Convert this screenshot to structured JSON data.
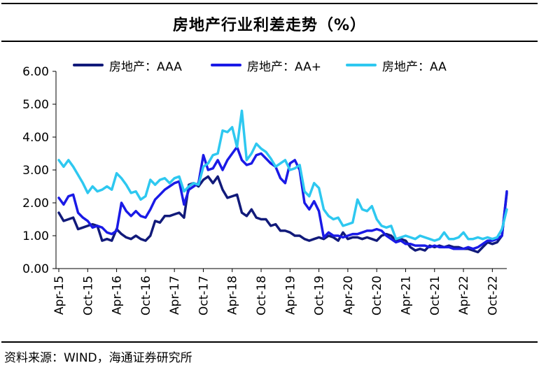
{
  "title": "房地产行业利差走势（%）",
  "source": "资料来源：WIND，海通证券研究所",
  "chart_data": {
    "type": "line",
    "title": "房地产行业利差走势（%）",
    "ylim": [
      0,
      6
    ],
    "yticks": [
      "0.00",
      "1.00",
      "2.00",
      "3.00",
      "4.00",
      "5.00",
      "6.00"
    ],
    "xticks": [
      "Apr-15",
      "Oct-15",
      "Apr-16",
      "Oct-16",
      "Apr-17",
      "Oct-17",
      "Apr-18",
      "Oct-18",
      "Apr-19",
      "Oct-19",
      "Apr-20",
      "Oct-20",
      "Apr-21",
      "Oct-21",
      "Apr-22",
      "Oct-22"
    ],
    "xlim": [
      "2015-04",
      "2023-01"
    ],
    "legend_position": "top",
    "grid": false,
    "series": [
      {
        "name": "房地产：AAA",
        "color": "#111a7a",
        "points": [
          [
            "2015-04",
            1.7
          ],
          [
            "2015-05",
            1.45
          ],
          [
            "2015-06",
            1.5
          ],
          [
            "2015-07",
            1.55
          ],
          [
            "2015-08",
            1.2
          ],
          [
            "2015-09",
            1.25
          ],
          [
            "2015-10",
            1.3
          ],
          [
            "2015-11",
            1.35
          ],
          [
            "2015-12",
            1.3
          ],
          [
            "2016-01",
            0.85
          ],
          [
            "2016-02",
            0.9
          ],
          [
            "2016-03",
            0.85
          ],
          [
            "2016-04",
            1.2
          ],
          [
            "2016-05",
            1.05
          ],
          [
            "2016-06",
            0.95
          ],
          [
            "2016-07",
            0.9
          ],
          [
            "2016-08",
            1.0
          ],
          [
            "2016-09",
            0.9
          ],
          [
            "2016-10",
            0.85
          ],
          [
            "2016-11",
            1.0
          ],
          [
            "2016-12",
            1.45
          ],
          [
            "2017-01",
            1.4
          ],
          [
            "2017-02",
            1.6
          ],
          [
            "2017-03",
            1.6
          ],
          [
            "2017-04",
            1.65
          ],
          [
            "2017-05",
            1.7
          ],
          [
            "2017-06",
            1.55
          ],
          [
            "2017-07",
            2.55
          ],
          [
            "2017-08",
            2.6
          ],
          [
            "2017-09",
            2.5
          ],
          [
            "2017-10",
            2.7
          ],
          [
            "2017-11",
            2.8
          ],
          [
            "2017-12",
            2.6
          ],
          [
            "2018-01",
            2.8
          ],
          [
            "2018-02",
            2.4
          ],
          [
            "2018-03",
            2.15
          ],
          [
            "2018-04",
            2.2
          ],
          [
            "2018-05",
            2.25
          ],
          [
            "2018-06",
            1.7
          ],
          [
            "2018-07",
            1.6
          ],
          [
            "2018-08",
            1.8
          ],
          [
            "2018-09",
            1.55
          ],
          [
            "2018-10",
            1.5
          ],
          [
            "2018-11",
            1.5
          ],
          [
            "2018-12",
            1.3
          ],
          [
            "2019-01",
            1.35
          ],
          [
            "2019-02",
            1.15
          ],
          [
            "2019-03",
            1.15
          ],
          [
            "2019-04",
            1.1
          ],
          [
            "2019-05",
            1.0
          ],
          [
            "2019-06",
            1.0
          ],
          [
            "2019-07",
            0.9
          ],
          [
            "2019-08",
            0.85
          ],
          [
            "2019-09",
            0.9
          ],
          [
            "2019-10",
            0.95
          ],
          [
            "2019-11",
            0.9
          ],
          [
            "2019-12",
            1.0
          ],
          [
            "2020-01",
            0.95
          ],
          [
            "2020-02",
            0.85
          ],
          [
            "2020-03",
            1.1
          ],
          [
            "2020-04",
            0.9
          ],
          [
            "2020-05",
            0.95
          ],
          [
            "2020-06",
            0.95
          ],
          [
            "2020-07",
            0.9
          ],
          [
            "2020-08",
            0.95
          ],
          [
            "2020-09",
            0.9
          ],
          [
            "2020-10",
            0.85
          ],
          [
            "2020-11",
            1.0
          ],
          [
            "2020-12",
            1.05
          ],
          [
            "2021-01",
            1.0
          ],
          [
            "2021-02",
            0.85
          ],
          [
            "2021-03",
            0.9
          ],
          [
            "2021-04",
            0.85
          ],
          [
            "2021-05",
            0.65
          ],
          [
            "2021-06",
            0.55
          ],
          [
            "2021-07",
            0.6
          ],
          [
            "2021-08",
            0.55
          ],
          [
            "2021-09",
            0.7
          ],
          [
            "2021-10",
            0.65
          ],
          [
            "2021-11",
            0.7
          ],
          [
            "2021-12",
            0.65
          ],
          [
            "2022-01",
            0.7
          ],
          [
            "2022-02",
            0.65
          ],
          [
            "2022-03",
            0.65
          ],
          [
            "2022-04",
            0.6
          ],
          [
            "2022-05",
            0.6
          ],
          [
            "2022-06",
            0.55
          ],
          [
            "2022-07",
            0.5
          ],
          [
            "2022-08",
            0.65
          ],
          [
            "2022-09",
            0.8
          ],
          [
            "2022-10",
            0.75
          ],
          [
            "2022-11",
            0.8
          ],
          [
            "2022-12",
            1.0
          ],
          [
            "2023-01",
            2.3
          ]
        ]
      },
      {
        "name": "房地产：AA+",
        "color": "#1a1ae6",
        "points": [
          [
            "2015-04",
            2.15
          ],
          [
            "2015-05",
            1.95
          ],
          [
            "2015-06",
            2.2
          ],
          [
            "2015-07",
            2.25
          ],
          [
            "2015-08",
            1.7
          ],
          [
            "2015-09",
            1.55
          ],
          [
            "2015-10",
            1.45
          ],
          [
            "2015-11",
            1.25
          ],
          [
            "2015-12",
            1.3
          ],
          [
            "2016-01",
            1.25
          ],
          [
            "2016-02",
            1.1
          ],
          [
            "2016-03",
            1.05
          ],
          [
            "2016-04",
            1.15
          ],
          [
            "2016-05",
            2.0
          ],
          [
            "2016-06",
            1.75
          ],
          [
            "2016-07",
            1.6
          ],
          [
            "2016-08",
            1.75
          ],
          [
            "2016-09",
            1.6
          ],
          [
            "2016-10",
            1.55
          ],
          [
            "2016-11",
            1.8
          ],
          [
            "2016-12",
            2.1
          ],
          [
            "2017-01",
            2.25
          ],
          [
            "2017-02",
            2.4
          ],
          [
            "2017-03",
            2.5
          ],
          [
            "2017-04",
            2.6
          ],
          [
            "2017-05",
            2.65
          ],
          [
            "2017-06",
            1.95
          ],
          [
            "2017-07",
            2.4
          ],
          [
            "2017-08",
            2.5
          ],
          [
            "2017-09",
            2.6
          ],
          [
            "2017-10",
            3.45
          ],
          [
            "2017-11",
            3.0
          ],
          [
            "2017-12",
            3.05
          ],
          [
            "2018-01",
            3.3
          ],
          [
            "2018-02",
            3.0
          ],
          [
            "2018-03",
            3.3
          ],
          [
            "2018-04",
            3.5
          ],
          [
            "2018-05",
            3.7
          ],
          [
            "2018-06",
            3.3
          ],
          [
            "2018-07",
            3.15
          ],
          [
            "2018-08",
            3.2
          ],
          [
            "2018-09",
            3.45
          ],
          [
            "2018-10",
            3.5
          ],
          [
            "2018-11",
            3.35
          ],
          [
            "2018-12",
            3.2
          ],
          [
            "2019-01",
            3.1
          ],
          [
            "2019-02",
            2.75
          ],
          [
            "2019-03",
            2.6
          ],
          [
            "2019-04",
            3.2
          ],
          [
            "2019-05",
            3.3
          ],
          [
            "2019-06",
            3.0
          ],
          [
            "2019-07",
            2.0
          ],
          [
            "2019-08",
            1.8
          ],
          [
            "2019-09",
            2.05
          ],
          [
            "2019-10",
            1.75
          ],
          [
            "2019-11",
            0.95
          ],
          [
            "2019-12",
            1.1
          ],
          [
            "2020-01",
            1.0
          ],
          [
            "2020-02",
            1.0
          ],
          [
            "2020-03",
            0.95
          ],
          [
            "2020-04",
            1.0
          ],
          [
            "2020-05",
            1.05
          ],
          [
            "2020-06",
            1.05
          ],
          [
            "2020-07",
            1.1
          ],
          [
            "2020-08",
            1.15
          ],
          [
            "2020-09",
            1.15
          ],
          [
            "2020-10",
            1.2
          ],
          [
            "2020-11",
            1.15
          ],
          [
            "2020-12",
            1.0
          ],
          [
            "2021-01",
            0.9
          ],
          [
            "2021-02",
            0.8
          ],
          [
            "2021-03",
            0.85
          ],
          [
            "2021-04",
            0.75
          ],
          [
            "2021-05",
            0.75
          ],
          [
            "2021-06",
            0.7
          ],
          [
            "2021-07",
            0.7
          ],
          [
            "2021-08",
            0.7
          ],
          [
            "2021-09",
            0.65
          ],
          [
            "2021-10",
            0.7
          ],
          [
            "2021-11",
            0.65
          ],
          [
            "2021-12",
            0.65
          ],
          [
            "2022-01",
            0.65
          ],
          [
            "2022-02",
            0.6
          ],
          [
            "2022-03",
            0.6
          ],
          [
            "2022-04",
            0.6
          ],
          [
            "2022-05",
            0.65
          ],
          [
            "2022-06",
            0.6
          ],
          [
            "2022-07",
            0.65
          ],
          [
            "2022-08",
            0.75
          ],
          [
            "2022-09",
            0.85
          ],
          [
            "2022-10",
            0.85
          ],
          [
            "2022-11",
            0.9
          ],
          [
            "2022-12",
            1.0
          ],
          [
            "2023-01",
            2.35
          ]
        ]
      },
      {
        "name": "房地产：AA",
        "color": "#2ec8f0",
        "points": [
          [
            "2015-04",
            3.3
          ],
          [
            "2015-05",
            3.1
          ],
          [
            "2015-06",
            3.3
          ],
          [
            "2015-07",
            3.1
          ],
          [
            "2015-08",
            2.85
          ],
          [
            "2015-09",
            2.6
          ],
          [
            "2015-10",
            2.3
          ],
          [
            "2015-11",
            2.5
          ],
          [
            "2015-12",
            2.35
          ],
          [
            "2016-01",
            2.4
          ],
          [
            "2016-02",
            2.5
          ],
          [
            "2016-03",
            2.4
          ],
          [
            "2016-04",
            2.9
          ],
          [
            "2016-05",
            2.75
          ],
          [
            "2016-06",
            2.55
          ],
          [
            "2016-07",
            2.3
          ],
          [
            "2016-08",
            2.35
          ],
          [
            "2016-09",
            2.1
          ],
          [
            "2016-10",
            2.2
          ],
          [
            "2016-11",
            2.7
          ],
          [
            "2016-12",
            2.55
          ],
          [
            "2017-01",
            2.7
          ],
          [
            "2017-02",
            2.75
          ],
          [
            "2017-03",
            2.6
          ],
          [
            "2017-04",
            2.75
          ],
          [
            "2017-05",
            2.8
          ],
          [
            "2017-06",
            2.35
          ],
          [
            "2017-07",
            2.5
          ],
          [
            "2017-08",
            2.6
          ],
          [
            "2017-09",
            2.55
          ],
          [
            "2017-10",
            3.1
          ],
          [
            "2017-11",
            3.2
          ],
          [
            "2017-12",
            3.45
          ],
          [
            "2018-01",
            3.5
          ],
          [
            "2018-02",
            4.2
          ],
          [
            "2018-03",
            4.15
          ],
          [
            "2018-04",
            4.3
          ],
          [
            "2018-05",
            3.7
          ],
          [
            "2018-06",
            4.8
          ],
          [
            "2018-07",
            3.3
          ],
          [
            "2018-08",
            3.5
          ],
          [
            "2018-09",
            3.8
          ],
          [
            "2018-10",
            3.65
          ],
          [
            "2018-11",
            3.55
          ],
          [
            "2018-12",
            3.35
          ],
          [
            "2019-01",
            3.1
          ],
          [
            "2019-02",
            3.2
          ],
          [
            "2019-03",
            3.3
          ],
          [
            "2019-04",
            3.0
          ],
          [
            "2019-05",
            3.05
          ],
          [
            "2019-06",
            3.15
          ],
          [
            "2019-07",
            2.35
          ],
          [
            "2019-08",
            2.2
          ],
          [
            "2019-09",
            2.6
          ],
          [
            "2019-10",
            2.45
          ],
          [
            "2019-11",
            1.8
          ],
          [
            "2019-12",
            1.6
          ],
          [
            "2020-01",
            1.5
          ],
          [
            "2020-02",
            1.55
          ],
          [
            "2020-03",
            1.3
          ],
          [
            "2020-04",
            1.35
          ],
          [
            "2020-05",
            1.4
          ],
          [
            "2020-06",
            2.1
          ],
          [
            "2020-07",
            1.8
          ],
          [
            "2020-08",
            1.75
          ],
          [
            "2020-09",
            1.9
          ],
          [
            "2020-10",
            1.5
          ],
          [
            "2020-11",
            1.3
          ],
          [
            "2020-12",
            1.25
          ],
          [
            "2021-01",
            1.3
          ],
          [
            "2021-02",
            0.9
          ],
          [
            "2021-03",
            0.95
          ],
          [
            "2021-04",
            1.0
          ],
          [
            "2021-05",
            0.95
          ],
          [
            "2021-06",
            0.9
          ],
          [
            "2021-07",
            1.0
          ],
          [
            "2021-08",
            0.95
          ],
          [
            "2021-09",
            0.9
          ],
          [
            "2021-10",
            0.85
          ],
          [
            "2021-11",
            0.9
          ],
          [
            "2021-12",
            1.1
          ],
          [
            "2022-01",
            0.9
          ],
          [
            "2022-02",
            0.9
          ],
          [
            "2022-03",
            0.95
          ],
          [
            "2022-04",
            1.1
          ],
          [
            "2022-05",
            0.9
          ],
          [
            "2022-06",
            0.9
          ],
          [
            "2022-07",
            0.95
          ],
          [
            "2022-08",
            0.9
          ],
          [
            "2022-09",
            0.95
          ],
          [
            "2022-10",
            0.9
          ],
          [
            "2022-11",
            0.95
          ],
          [
            "2022-12",
            1.2
          ],
          [
            "2023-01",
            1.8
          ]
        ]
      }
    ]
  }
}
